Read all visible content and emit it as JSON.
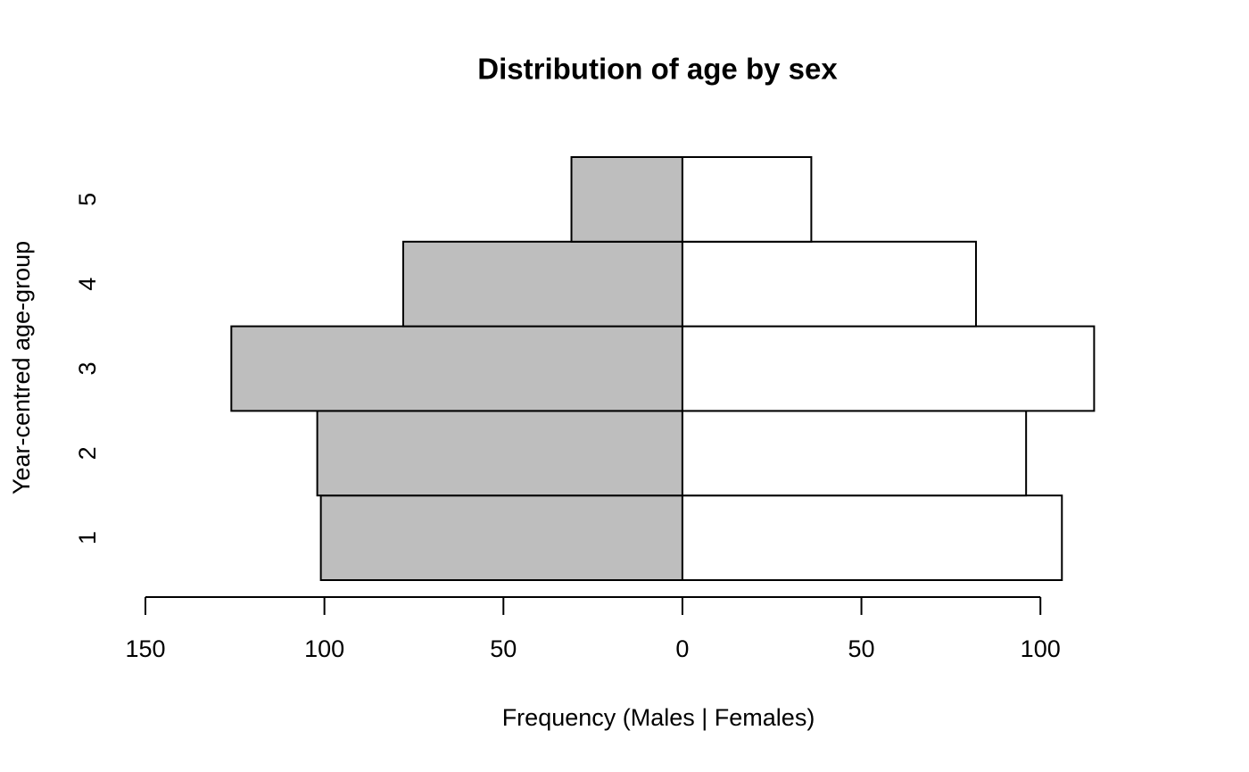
{
  "chart_data": {
    "type": "bar",
    "orientation": "horizontal",
    "title": "Distribution of age by sex",
    "x_label": "Frequency (Males | Females)",
    "y_label": "Year-centred age-group",
    "categories": [
      "1",
      "2",
      "3",
      "4",
      "5"
    ],
    "series": [
      {
        "color": "#bebebe",
        "values": [
          -101,
          -102,
          -126,
          -78,
          -31
        ]
      },
      {
        "color": "#ffffff",
        "values": [
          106,
          96,
          115,
          82,
          36
        ]
      }
    ],
    "xlim": [
      -150,
      115
    ],
    "xticks": [
      {
        "value": -150,
        "label": "150"
      },
      {
        "value": -100,
        "label": "100"
      },
      {
        "value": -50,
        "label": "50"
      },
      0,
      50,
      100
    ],
    "grid": false
  }
}
